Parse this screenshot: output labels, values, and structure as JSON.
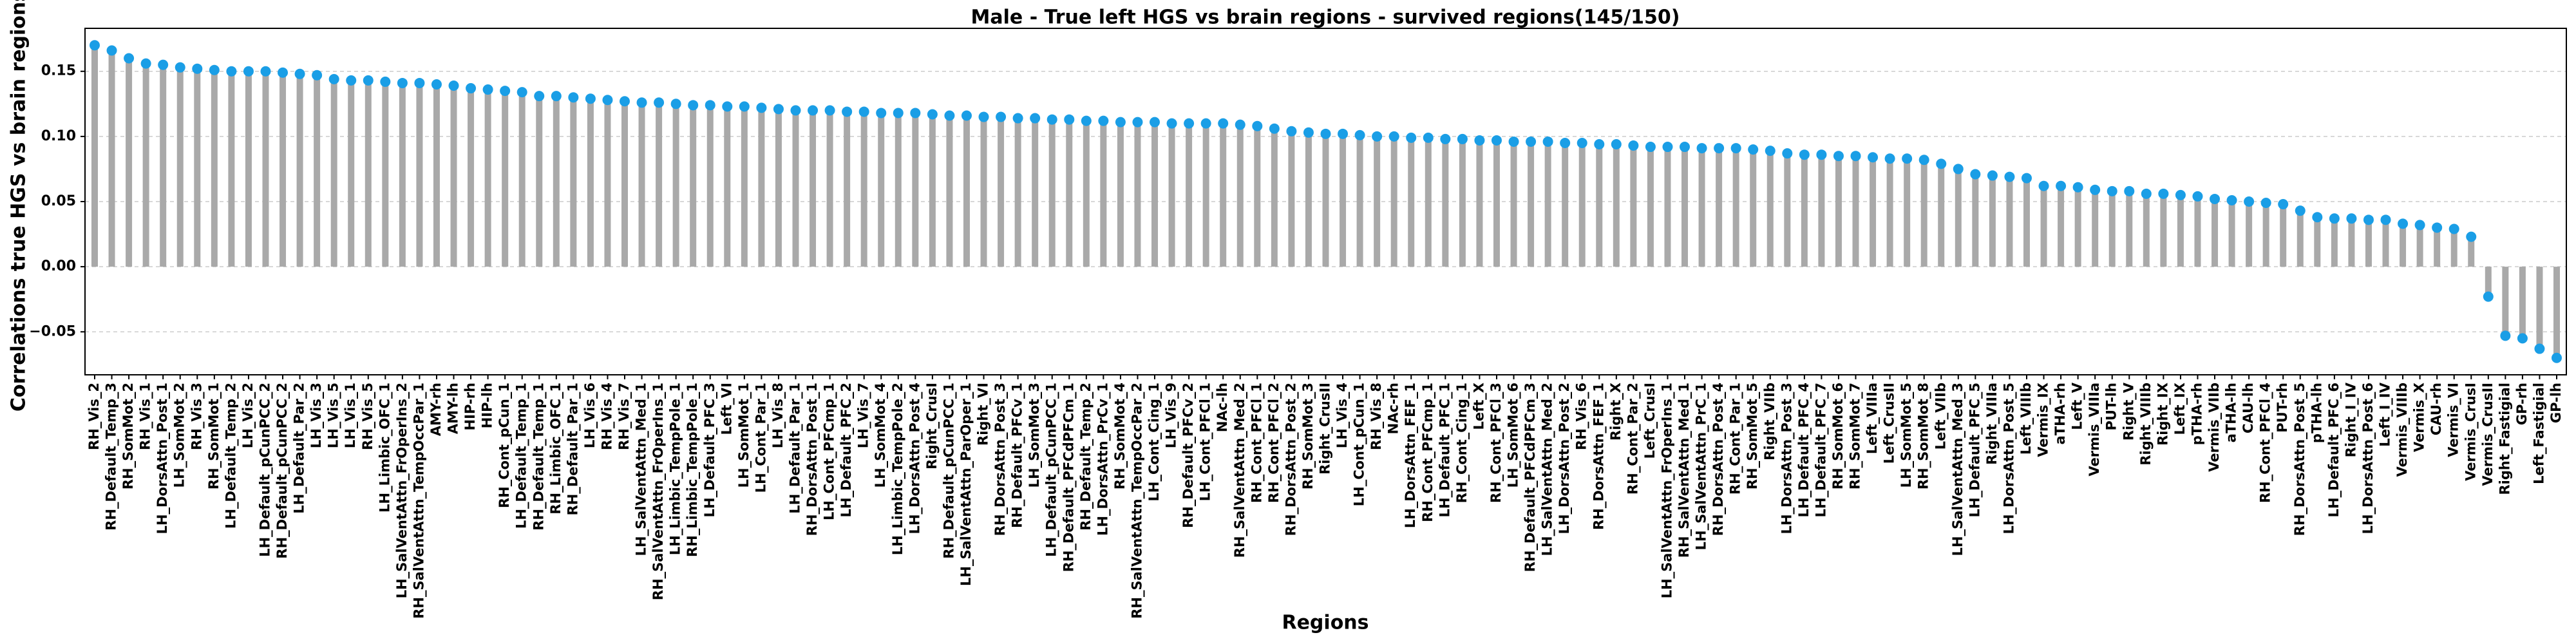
{
  "chart_data": {
    "type": "lollipop",
    "title": "Male - True left HGS vs brain regions - survived regions(145/150)",
    "x_label": "Regions",
    "y_label": "Correlations true HGS vs brain regions",
    "stem_color": "#a9a9a9",
    "color": "#1a9ee6",
    "grid": true,
    "ylim": [
      -0.083,
      0.183
    ],
    "yticks": [
      {
        "value": -0.05,
        "label": "−0.05"
      },
      {
        "value": 0,
        "label": "0.00"
      },
      {
        "value": 0.05,
        "label": "0.05"
      },
      {
        "value": 0.1,
        "label": "0.10"
      },
      {
        "value": 0.15,
        "label": "0.15"
      }
    ],
    "categories": [
      "RH_Vis_2",
      "RH_Default_Temp_3",
      "RH_SomMot_2",
      "RH_Vis_1",
      "LH_DorsAttn_Post_1",
      "LH_SomMot_2",
      "RH_Vis_3",
      "RH_SomMot_1",
      "LH_Default_Temp_2",
      "LH_Vis_2",
      "LH_Default_pCunPCC_2",
      "RH_Default_pCunPCC_2",
      "LH_Default_Par_2",
      "LH_Vis_3",
      "LH_Vis_5",
      "LH_Vis_1",
      "RH_Vis_5",
      "LH_Limbic_OFC_1",
      "LH_SalVentAttn_FrOperIns_2",
      "RH_SalVentAttn_TempOccPar_1",
      "AMY-rh",
      "AMY-lh",
      "HIP-rh",
      "HIP-lh",
      "RH_Cont_pCun_1",
      "LH_Default_Temp_1",
      "RH_Default_Temp_1",
      "RH_Limbic_OFC_1",
      "RH_Default_Par_1",
      "LH_Vis_6",
      "RH_Vis_4",
      "RH_Vis_7",
      "LH_SalVentAttn_Med_1",
      "RH_SalVentAttn_FrOperIns_1",
      "LH_Limbic_TempPole_1",
      "RH_Limbic_TempPole_1",
      "LH_Default_PFC_3",
      "Left_VI",
      "LH_SomMot_1",
      "LH_Cont_Par_1",
      "LH_Vis_8",
      "LH_Default_Par_1",
      "RH_DorsAttn_Post_1",
      "LH_Cont_PFCmp_1",
      "LH_Default_PFC_2",
      "LH_Vis_7",
      "LH_SomMot_4",
      "LH_Limbic_TempPole_2",
      "LH_DorsAttn_Post_4",
      "Right_CrusI",
      "RH_Default_pCunPCC_1",
      "LH_SalVentAttn_ParOper_1",
      "Right_VI",
      "RH_DorsAttn_Post_3",
      "RH_Default_PFCv_1",
      "LH_SomMot_3",
      "LH_Default_pCunPCC_1",
      "RH_Default_PFCdPFCm_1",
      "RH_Default_Temp_2",
      "LH_DorsAttn_PrCv_1",
      "RH_SomMot_4",
      "RH_SalVentAttn_TempOccPar_2",
      "LH_Cont_Cing_1",
      "LH_Vis_9",
      "RH_Default_PFCv_2",
      "LH_Cont_PFCl_1",
      "NAc-lh",
      "RH_SalVentAttn_Med_2",
      "RH_Cont_PFCl_1",
      "RH_Cont_PFCl_2",
      "RH_DorsAttn_Post_2",
      "RH_SomMot_3",
      "Right_CrusII",
      "LH_Vis_4",
      "LH_Cont_pCun_1",
      "RH_Vis_8",
      "NAc-rh",
      "LH_DorsAttn_FEF_1",
      "RH_Cont_PFCmp_1",
      "LH_Default_PFC_1",
      "RH_Cont_Cing_1",
      "Left_X",
      "RH_Cont_PFCl_3",
      "LH_SomMot_6",
      "RH_Default_PFCdPFCm_3",
      "LH_SalVentAttn_Med_2",
      "LH_DorsAttn_Post_2",
      "RH_Vis_6",
      "RH_DorsAttn_FEF_1",
      "Right_X",
      "RH_Cont_Par_2",
      "Left_CrusI",
      "LH_SalVentAttn_FrOperIns_1",
      "RH_SalVentAttn_Med_1",
      "LH_SalVentAttn_PrC_1",
      "RH_DorsAttn_Post_4",
      "RH_Cont_Par_1",
      "RH_SomMot_5",
      "Right_VIIb",
      "LH_DorsAttn_Post_3",
      "LH_Default_PFC_4",
      "LH_Default_PFC_7",
      "RH_SomMot_6",
      "RH_SomMot_7",
      "Left_VIIIa",
      "Left_CrusII",
      "LH_SomMot_5",
      "RH_SomMot_8",
      "Left_VIIb",
      "LH_SalVentAttn_Med_3",
      "LH_Default_PFC_5",
      "Right_VIIIa",
      "LH_DorsAttn_Post_5",
      "Left_VIIIb",
      "Vermis_IX",
      "aTHA-rh",
      "Left_V",
      "Vermis_VIIIa",
      "PUT-lh",
      "Right_V",
      "Right_VIIIb",
      "Right_IX",
      "Left_IX",
      "pTHA-rh",
      "Vermis_VIIb",
      "aTHA-lh",
      "CAU-lh",
      "RH_Cont_PFCl_4",
      "PUT-rh",
      "RH_DorsAttn_Post_5",
      "pTHA-lh",
      "LH_Default_PFC_6",
      "Right_I_IV",
      "LH_DorsAttn_Post_6",
      "Left_I_IV",
      "Vermis_VIIIb",
      "Vermis_X",
      "CAU-rh",
      "Vermis_VI",
      "Vermis_CrusI",
      "Vermis_CrusII",
      "Right_Fastigial",
      "GP-rh",
      "Left_Fastigial",
      "GP-lh"
    ],
    "values": [
      0.17,
      0.166,
      0.16,
      0.156,
      0.155,
      0.153,
      0.152,
      0.151,
      0.15,
      0.15,
      0.15,
      0.149,
      0.148,
      0.147,
      0.144,
      0.143,
      0.143,
      0.142,
      0.141,
      0.141,
      0.14,
      0.139,
      0.137,
      0.136,
      0.135,
      0.134,
      0.131,
      0.131,
      0.13,
      0.129,
      0.128,
      0.127,
      0.126,
      0.126,
      0.125,
      0.124,
      0.124,
      0.123,
      0.123,
      0.122,
      0.121,
      0.12,
      0.12,
      0.12,
      0.119,
      0.119,
      0.118,
      0.118,
      0.118,
      0.117,
      0.116,
      0.116,
      0.115,
      0.115,
      0.114,
      0.114,
      0.113,
      0.113,
      0.112,
      0.112,
      0.111,
      0.111,
      0.111,
      0.11,
      0.11,
      0.11,
      0.11,
      0.109,
      0.108,
      0.106,
      0.104,
      0.103,
      0.102,
      0.102,
      0.101,
      0.1,
      0.1,
      0.099,
      0.099,
      0.098,
      0.098,
      0.097,
      0.097,
      0.096,
      0.096,
      0.096,
      0.095,
      0.095,
      0.094,
      0.094,
      0.093,
      0.092,
      0.092,
      0.092,
      0.091,
      0.091,
      0.091,
      0.09,
      0.089,
      0.087,
      0.086,
      0.086,
      0.085,
      0.085,
      0.084,
      0.083,
      0.083,
      0.082,
      0.079,
      0.075,
      0.071,
      0.07,
      0.069,
      0.068,
      0.062,
      0.062,
      0.061,
      0.059,
      0.058,
      0.058,
      0.056,
      0.056,
      0.055,
      0.054,
      0.052,
      0.051,
      0.05,
      0.049,
      0.048,
      0.043,
      0.038,
      0.037,
      0.037,
      0.036,
      0.036,
      0.033,
      0.032,
      0.03,
      0.029,
      0.023,
      -0.023,
      -0.053,
      -0.055,
      -0.063,
      -0.07
    ]
  }
}
